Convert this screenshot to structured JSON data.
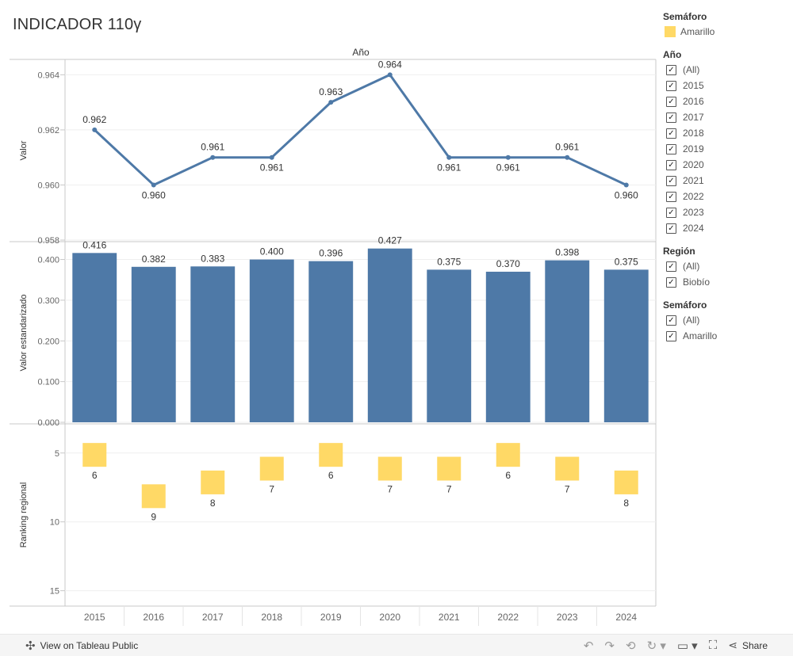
{
  "title": "INDICADOR 110γ",
  "header_label": "Año",
  "chart_data": [
    {
      "type": "line",
      "ylabel": "Valor",
      "ylim": [
        0.958,
        0.9645
      ],
      "yticks": [
        "0.958",
        "0.960",
        "0.962",
        "0.964"
      ],
      "ytick_values": [
        0.958,
        0.96,
        0.962,
        0.964
      ],
      "x": [
        "2015",
        "2016",
        "2017",
        "2018",
        "2019",
        "2020",
        "2021",
        "2022",
        "2023",
        "2024"
      ],
      "values": [
        0.962,
        0.96,
        0.961,
        0.961,
        0.963,
        0.964,
        0.961,
        0.961,
        0.961,
        0.96
      ],
      "labels": [
        "0.962",
        "0.960",
        "0.961",
        "0.961",
        "0.963",
        "0.964",
        "0.961",
        "0.961",
        "0.961",
        "0.960"
      ],
      "label_above": [
        true,
        false,
        true,
        false,
        true,
        true,
        false,
        false,
        true,
        false
      ],
      "color": "#4E79A7"
    },
    {
      "type": "bar",
      "ylabel": "Valor estandarizado",
      "ylim": [
        0,
        0.44
      ],
      "yticks": [
        "0.000",
        "0.100",
        "0.200",
        "0.300",
        "0.400"
      ],
      "ytick_values": [
        0,
        0.1,
        0.2,
        0.3,
        0.4
      ],
      "x": [
        "2015",
        "2016",
        "2017",
        "2018",
        "2019",
        "2020",
        "2021",
        "2022",
        "2023",
        "2024"
      ],
      "values": [
        0.416,
        0.382,
        0.383,
        0.4,
        0.396,
        0.427,
        0.375,
        0.37,
        0.398,
        0.375
      ],
      "labels": [
        "0.416",
        "0.382",
        "0.383",
        "0.400",
        "0.396",
        "0.427",
        "0.375",
        "0.370",
        "0.398",
        "0.375"
      ],
      "color": "#4E79A7"
    },
    {
      "type": "scatter",
      "ylabel": "Ranking regional",
      "ylim": [
        3,
        16
      ],
      "y_reversed": true,
      "yticks": [
        "5",
        "10",
        "15"
      ],
      "ytick_values": [
        5,
        10,
        15
      ],
      "x": [
        "2015",
        "2016",
        "2017",
        "2018",
        "2019",
        "2020",
        "2021",
        "2022",
        "2023",
        "2024"
      ],
      "values": [
        6,
        9,
        8,
        7,
        6,
        7,
        7,
        6,
        7,
        8
      ],
      "labels": [
        "6",
        "9",
        "8",
        "7",
        "6",
        "7",
        "7",
        "6",
        "7",
        "8"
      ],
      "color": "#FFD966"
    }
  ],
  "x_tick_labels": [
    "2015",
    "2016",
    "2017",
    "2018",
    "2019",
    "2020",
    "2021",
    "2022",
    "2023",
    "2024"
  ],
  "filters": {
    "legend": {
      "title": "Semáforo",
      "items": [
        "Amarillo"
      ],
      "color": "#FFD966"
    },
    "year": {
      "title": "Año",
      "items": [
        "(All)",
        "2015",
        "2016",
        "2017",
        "2018",
        "2019",
        "2020",
        "2021",
        "2022",
        "2023",
        "2024"
      ]
    },
    "region": {
      "title": "Región",
      "items": [
        "(All)",
        "Biobío"
      ]
    },
    "semaforo": {
      "title": "Semáforo",
      "items": [
        "(All)",
        "Amarillo"
      ]
    }
  },
  "toolbar": {
    "view_label": "View on Tableau Public",
    "share_label": "Share"
  },
  "check_glyph": "✓"
}
